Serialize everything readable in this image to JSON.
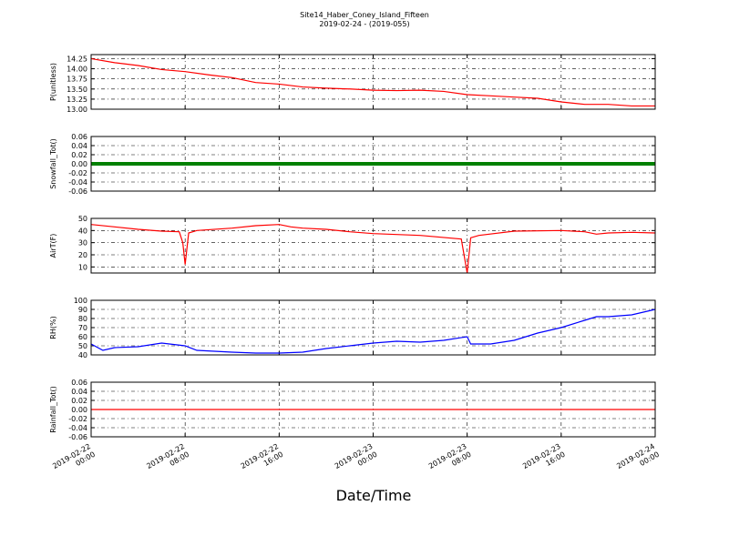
{
  "figure": {
    "title": "Site14_Haber_Coney_Island_Fifteen",
    "subtitle": "2019-02-24 - (2019-055)",
    "xlabel": "Date/Time",
    "xlim": [
      "2019-02-22 00:00",
      "2019-02-24 00:00"
    ],
    "xticks": [
      "2019-02-22 00:00",
      "2019-02-22 08:00",
      "2019-02-22 16:00",
      "2019-02-23 00:00",
      "2019-02-23 08:00",
      "2019-02-23 16:00",
      "2019-02-24 00:00"
    ]
  },
  "chart_data": [
    {
      "type": "line",
      "ylabel": "P(unitless)",
      "ylim": [
        13.0,
        14.35
      ],
      "yticks": [
        {
          "value": 13,
          "label": "13.00"
        },
        {
          "value": 13.25,
          "label": "13.25"
        },
        {
          "value": 13.5,
          "label": "13.50"
        },
        {
          "value": 13.75,
          "label": "13.75"
        },
        {
          "value": 14,
          "label": "14.00"
        },
        {
          "value": 14.25,
          "label": "14.25"
        }
      ],
      "grid": true,
      "series": [
        {
          "name": "P",
          "color": "#ff0000",
          "x": [
            "2019-02-22 00:00",
            "2019-02-22 02:00",
            "2019-02-22 04:00",
            "2019-02-22 06:00",
            "2019-02-22 08:00",
            "2019-02-22 10:00",
            "2019-02-22 12:00",
            "2019-02-22 14:00",
            "2019-02-22 16:00",
            "2019-02-22 18:00",
            "2019-02-22 20:00",
            "2019-02-22 22:00",
            "2019-02-23 00:00",
            "2019-02-23 02:00",
            "2019-02-23 04:00",
            "2019-02-23 06:00",
            "2019-02-23 08:00",
            "2019-02-23 10:00",
            "2019-02-23 12:00",
            "2019-02-23 14:00",
            "2019-02-23 16:00",
            "2019-02-23 18:00",
            "2019-02-23 20:00",
            "2019-02-23 22:00",
            "2019-02-24 00:00"
          ],
          "values": [
            14.25,
            14.15,
            14.08,
            13.98,
            13.93,
            13.85,
            13.78,
            13.66,
            13.62,
            13.55,
            13.52,
            13.5,
            13.47,
            13.46,
            13.47,
            13.44,
            13.36,
            13.33,
            13.3,
            13.27,
            13.18,
            13.12,
            13.12,
            13.08,
            13.08
          ]
        }
      ]
    },
    {
      "type": "line",
      "ylabel": "Snowfall_Tot()",
      "ylim": [
        -0.06,
        0.06
      ],
      "yticks": [
        -0.06,
        -0.04,
        -0.02,
        {
          "value": 0,
          "label": "0.00"
        },
        0.02,
        0.04,
        0.06
      ],
      "grid": true,
      "series": [
        {
          "name": "Snowfall_Tot",
          "color": "#008000",
          "x": [
            "2019-02-22 00:00",
            "2019-02-24 00:00"
          ],
          "values": [
            0,
            0
          ]
        }
      ]
    },
    {
      "type": "line",
      "ylabel": "AirT(F)",
      "ylim": [
        5,
        50
      ],
      "yticks": [
        10,
        20,
        30,
        40,
        50
      ],
      "grid": true,
      "series": [
        {
          "name": "AirT",
          "color": "#ff0000",
          "x": [
            "2019-02-22 00:00",
            "2019-02-22 02:00",
            "2019-02-22 04:00",
            "2019-02-22 06:00",
            "2019-02-22 07:30",
            "2019-02-22 07:48",
            "2019-02-22 08:00",
            "2019-02-22 08:18",
            "2019-02-22 09:00",
            "2019-02-22 12:00",
            "2019-02-22 14:00",
            "2019-02-22 16:00",
            "2019-02-22 17:00",
            "2019-02-22 18:00",
            "2019-02-22 20:00",
            "2019-02-22 22:00",
            "2019-02-23 00:00",
            "2019-02-23 04:00",
            "2019-02-23 07:30",
            "2019-02-23 08:00",
            "2019-02-23 08:18",
            "2019-02-23 09:00",
            "2019-02-23 12:00",
            "2019-02-23 16:00",
            "2019-02-23 18:00",
            "2019-02-23 19:00",
            "2019-02-23 20:00",
            "2019-02-23 22:00",
            "2019-02-24 00:00"
          ],
          "values": [
            45,
            43,
            41,
            39.5,
            39,
            30,
            12,
            38,
            40,
            42,
            44,
            45,
            43,
            42,
            41,
            39,
            37.5,
            36,
            33,
            5,
            34,
            36,
            39.5,
            40,
            39,
            37,
            38,
            38.5,
            38
          ]
        }
      ]
    },
    {
      "type": "line",
      "ylabel": "RH(%)",
      "ylim": [
        40,
        100
      ],
      "yticks": [
        40,
        50,
        60,
        70,
        80,
        90,
        100
      ],
      "grid": true,
      "series": [
        {
          "name": "RH",
          "color": "#0000ff",
          "x": [
            "2019-02-22 00:00",
            "2019-02-22 01:00",
            "2019-02-22 02:00",
            "2019-02-22 04:00",
            "2019-02-22 06:00",
            "2019-02-22 08:00",
            "2019-02-22 09:00",
            "2019-02-22 12:00",
            "2019-02-22 14:00",
            "2019-02-22 16:00",
            "2019-02-22 18:00",
            "2019-02-22 20:00",
            "2019-02-22 22:00",
            "2019-02-23 00:00",
            "2019-02-23 02:00",
            "2019-02-23 04:00",
            "2019-02-23 06:00",
            "2019-02-23 08:00",
            "2019-02-23 08:18",
            "2019-02-23 10:00",
            "2019-02-23 12:00",
            "2019-02-23 14:00",
            "2019-02-23 16:00",
            "2019-02-23 18:00",
            "2019-02-23 19:00",
            "2019-02-23 20:00",
            "2019-02-23 22:00",
            "2019-02-24 00:00"
          ],
          "values": [
            52,
            45,
            48,
            49,
            53,
            50,
            45,
            43,
            42,
            42,
            43,
            47,
            50,
            53,
            55,
            54,
            56,
            60,
            52,
            52,
            56,
            64,
            70,
            78,
            82,
            82,
            84,
            90
          ]
        }
      ]
    },
    {
      "type": "line",
      "ylabel": "Rainfall_Tot()",
      "ylim": [
        -0.06,
        0.06
      ],
      "yticks": [
        -0.06,
        -0.04,
        -0.02,
        {
          "value": 0,
          "label": "0.00"
        },
        0.02,
        0.04,
        0.06
      ],
      "grid": true,
      "series": [
        {
          "name": "Rainfall_Tot",
          "color": "#ff0000",
          "x": [
            "2019-02-22 00:00",
            "2019-02-24 00:00"
          ],
          "values": [
            0,
            0
          ]
        }
      ]
    }
  ]
}
